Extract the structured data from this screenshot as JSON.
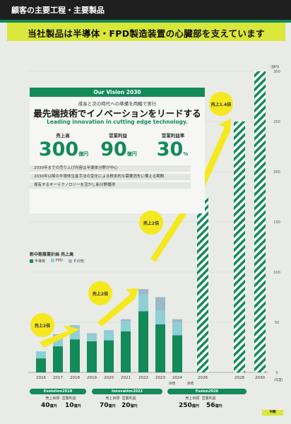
{
  "header": {
    "title": "顧客の主要工程・主要製品"
  },
  "tagline": "当社製品は半導体・FPD製造装置の心臓部を支えています",
  "vision": {
    "tab": "Our Vision 2030",
    "subtitle": "成長と次の時代への準備を両輪で実行",
    "headline": "最先端技術でイノベーションをリードする",
    "english": "Leading innovation in cutting edge technology.",
    "kpis": [
      {
        "label": "売上高",
        "value": "300",
        "unit": "億円"
      },
      {
        "label": "営業利益",
        "value": "90",
        "unit": "億円"
      },
      {
        "label": "営業利益率",
        "value": "30",
        "unit": "%"
      }
    ],
    "bullets": [
      "2030年までの売り上げ内容は半導体分野が中心",
      "2030年以降の半導体生産手法の変化による根本的な需要消失に備える期間",
      "保有するキーテクノロジーを活かし新分野獲得"
    ]
  },
  "legend": {
    "title": "新中期事業計画 売上高",
    "items": [
      {
        "label": "半導体",
        "color": "#128a5a"
      },
      {
        "label": "FPD",
        "color": "#8fcfd6"
      },
      {
        "label": "その他",
        "color": "#9cb7c9"
      }
    ]
  },
  "callouts": [
    "売上2倍",
    "売上2倍",
    "売上2倍",
    "売上1.4倍"
  ],
  "chart_data": {
    "type": "bar",
    "categories": [
      "2016",
      "2017",
      "2018",
      "2019",
      "2020",
      "2021",
      "2022",
      "2023",
      "2024",
      "2026",
      "2028",
      "2030"
    ],
    "y_unit": "(億円)",
    "x_unit": "(年度)",
    "ylim": [
      0,
      300
    ],
    "yticks": [
      0,
      50,
      100,
      150,
      200,
      250,
      300
    ],
    "series": [
      {
        "name": "半導体",
        "values": [
          14,
          26,
          33,
          31,
          32,
          41,
          61,
          48,
          37,
          null,
          null,
          null
        ]
      },
      {
        "name": "FPD",
        "values": [
          7,
          11,
          13,
          7,
          9,
          10,
          17,
          14,
          13,
          null,
          null,
          null
        ]
      },
      {
        "name": "その他",
        "values": [
          0,
          1,
          1,
          1,
          1,
          2,
          5,
          13,
          3,
          null,
          null,
          null
        ]
      }
    ],
    "targets": [
      {
        "year": "2026",
        "value": 175
      },
      {
        "year": "2028",
        "value": 250
      },
      {
        "year": "2030",
        "value": 300
      }
    ]
  },
  "plans": [
    {
      "name": "Evolution2018",
      "sub": "目標",
      "sales_label": "売上目標",
      "profit_label": "営業利益",
      "sales": "40",
      "profit": "10",
      "unit": "億円"
    },
    {
      "name": "Innovation2022",
      "sub": "目標",
      "sales_label": "売上目標",
      "profit_label": "営業利益",
      "sales": "70",
      "profit": "20",
      "unit": "億円"
    },
    {
      "name": "Fusion2026",
      "sub": "目標",
      "sales_label": "売上目標",
      "profit_label": "営業利益",
      "sales": "250",
      "profit": "56",
      "unit": "億円"
    }
  ],
  "notes": [
    "目標",
    "目標"
  ],
  "corner_stamp": "中期"
}
